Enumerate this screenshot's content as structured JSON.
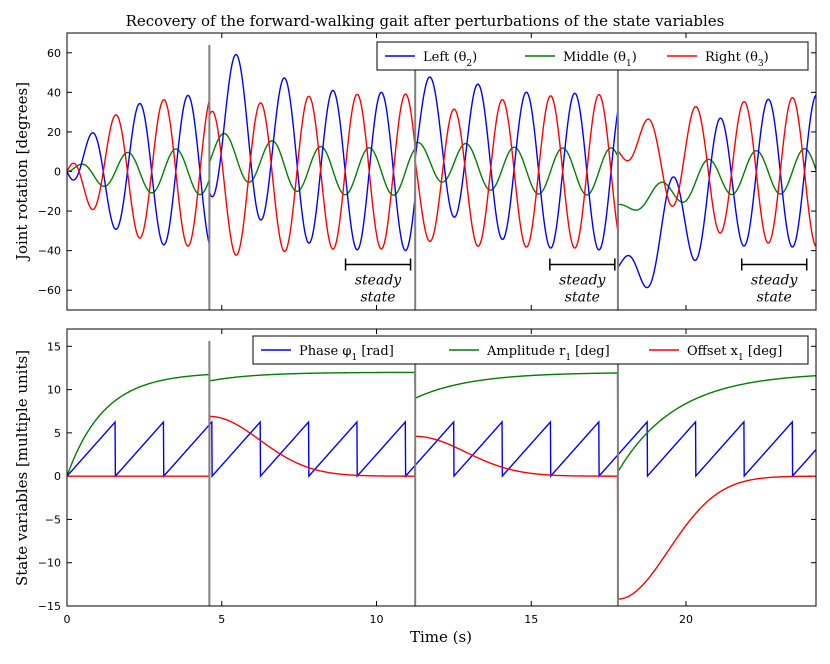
{
  "figure": {
    "title": "Recovery of the forward-walking gait after perturbations of the state variables",
    "xlabel": "Time (s)"
  },
  "colors": {
    "blue": "#0000ff",
    "green": "#007f00",
    "red": "#ff0000",
    "perturbation": "#808080"
  },
  "chart_data": [
    {
      "type": "line",
      "name": "joint-rotation",
      "ylabel": "Joint rotation [degrees]",
      "xlim": [
        0,
        24.2
      ],
      "ylim": [
        -70,
        70
      ],
      "xticks": [
        0,
        5,
        10,
        15,
        20
      ],
      "xtick_labels": [
        "",
        "",
        "",
        "",
        ""
      ],
      "yticks": [
        60,
        40,
        20,
        0,
        -20,
        -40,
        -60
      ],
      "ytick_labels": [
        "60",
        "40",
        "20",
        "0",
        "−20",
        "−40",
        "−60"
      ],
      "legend_position": "top-right",
      "series": [
        {
          "name": "Left (θ₂)",
          "legend_label": "Left (θ",
          "legend_sub": "2",
          "color_key": "blue"
        },
        {
          "name": "Middle (θ₁)",
          "legend_label": "Middle (θ",
          "legend_sub": "1",
          "color_key": "green"
        },
        {
          "name": "Right (θ₃)",
          "legend_label": "Right (θ",
          "legend_sub": "3",
          "color_key": "red"
        }
      ],
      "perturbation_times": [
        4.6,
        11.25,
        17.8
      ],
      "annotations": [
        {
          "x_start": 9.0,
          "x_end": 11.1,
          "y": -47,
          "line1": "steady",
          "line2": "state"
        },
        {
          "x_start": 15.6,
          "x_end": 17.7,
          "y": -47,
          "line1": "steady",
          "line2": "state"
        },
        {
          "x_start": 21.8,
          "x_end": 23.9,
          "y": -47,
          "line1": "steady",
          "line2": "state"
        }
      ]
    },
    {
      "type": "line",
      "name": "state-variables",
      "ylabel": "State variables [multiple units]",
      "xlim": [
        0,
        24.2
      ],
      "ylim": [
        -15,
        17
      ],
      "xticks": [
        0,
        5,
        10,
        15,
        20
      ],
      "xtick_labels": [
        "0",
        "5",
        "10",
        "15",
        "20"
      ],
      "yticks": [
        15,
        10,
        5,
        0,
        -5,
        -10,
        -15
      ],
      "ytick_labels": [
        "15",
        "10",
        "5",
        "0",
        "−5",
        "−10",
        "−15"
      ],
      "legend_position": "top-right",
      "series": [
        {
          "name": "Phase φ₁ [rad]",
          "legend_label": "Phase φ",
          "legend_sub": "1",
          "legend_tail": " [rad]",
          "color_key": "blue"
        },
        {
          "name": "Amplitude r₁ [deg]",
          "legend_label": "Amplitude r",
          "legend_sub": "1",
          "legend_tail": " [deg]",
          "color_key": "green"
        },
        {
          "name": "Offset x₁ [deg]",
          "legend_label": "Offset x",
          "legend_sub": "1",
          "legend_tail": " [deg]",
          "color_key": "red"
        }
      ],
      "phase_frequency_hz": 0.64,
      "amplitude_segments": [
        {
          "t0": 0,
          "t1": 4.6,
          "start": 0,
          "target": 12,
          "tau": 1.2
        },
        {
          "t0": 4.6,
          "t1": 11.25,
          "start": 11.0,
          "target": 12,
          "tau": 1.5
        },
        {
          "t0": 11.25,
          "t1": 17.8,
          "start": 9.0,
          "target": 12,
          "tau": 1.8
        },
        {
          "t0": 17.8,
          "t1": 24.2,
          "start": 0.5,
          "target": 12,
          "tau": 1.9
        }
      ],
      "offset_segments": [
        {
          "t0": 0,
          "t1": 4.6,
          "start": 0,
          "kind": "flat"
        },
        {
          "t0": 4.6,
          "t1": 11.25,
          "start": 6.9,
          "kind": "decay",
          "width": 2.3
        },
        {
          "t0": 11.25,
          "t1": 17.8,
          "start": 4.6,
          "kind": "decay",
          "width": 2.3
        },
        {
          "t0": 17.8,
          "t1": 24.2,
          "start": -14.2,
          "kind": "decay",
          "width": 2.3
        }
      ],
      "perturbation_times": [
        4.6,
        11.25,
        17.8
      ]
    }
  ]
}
